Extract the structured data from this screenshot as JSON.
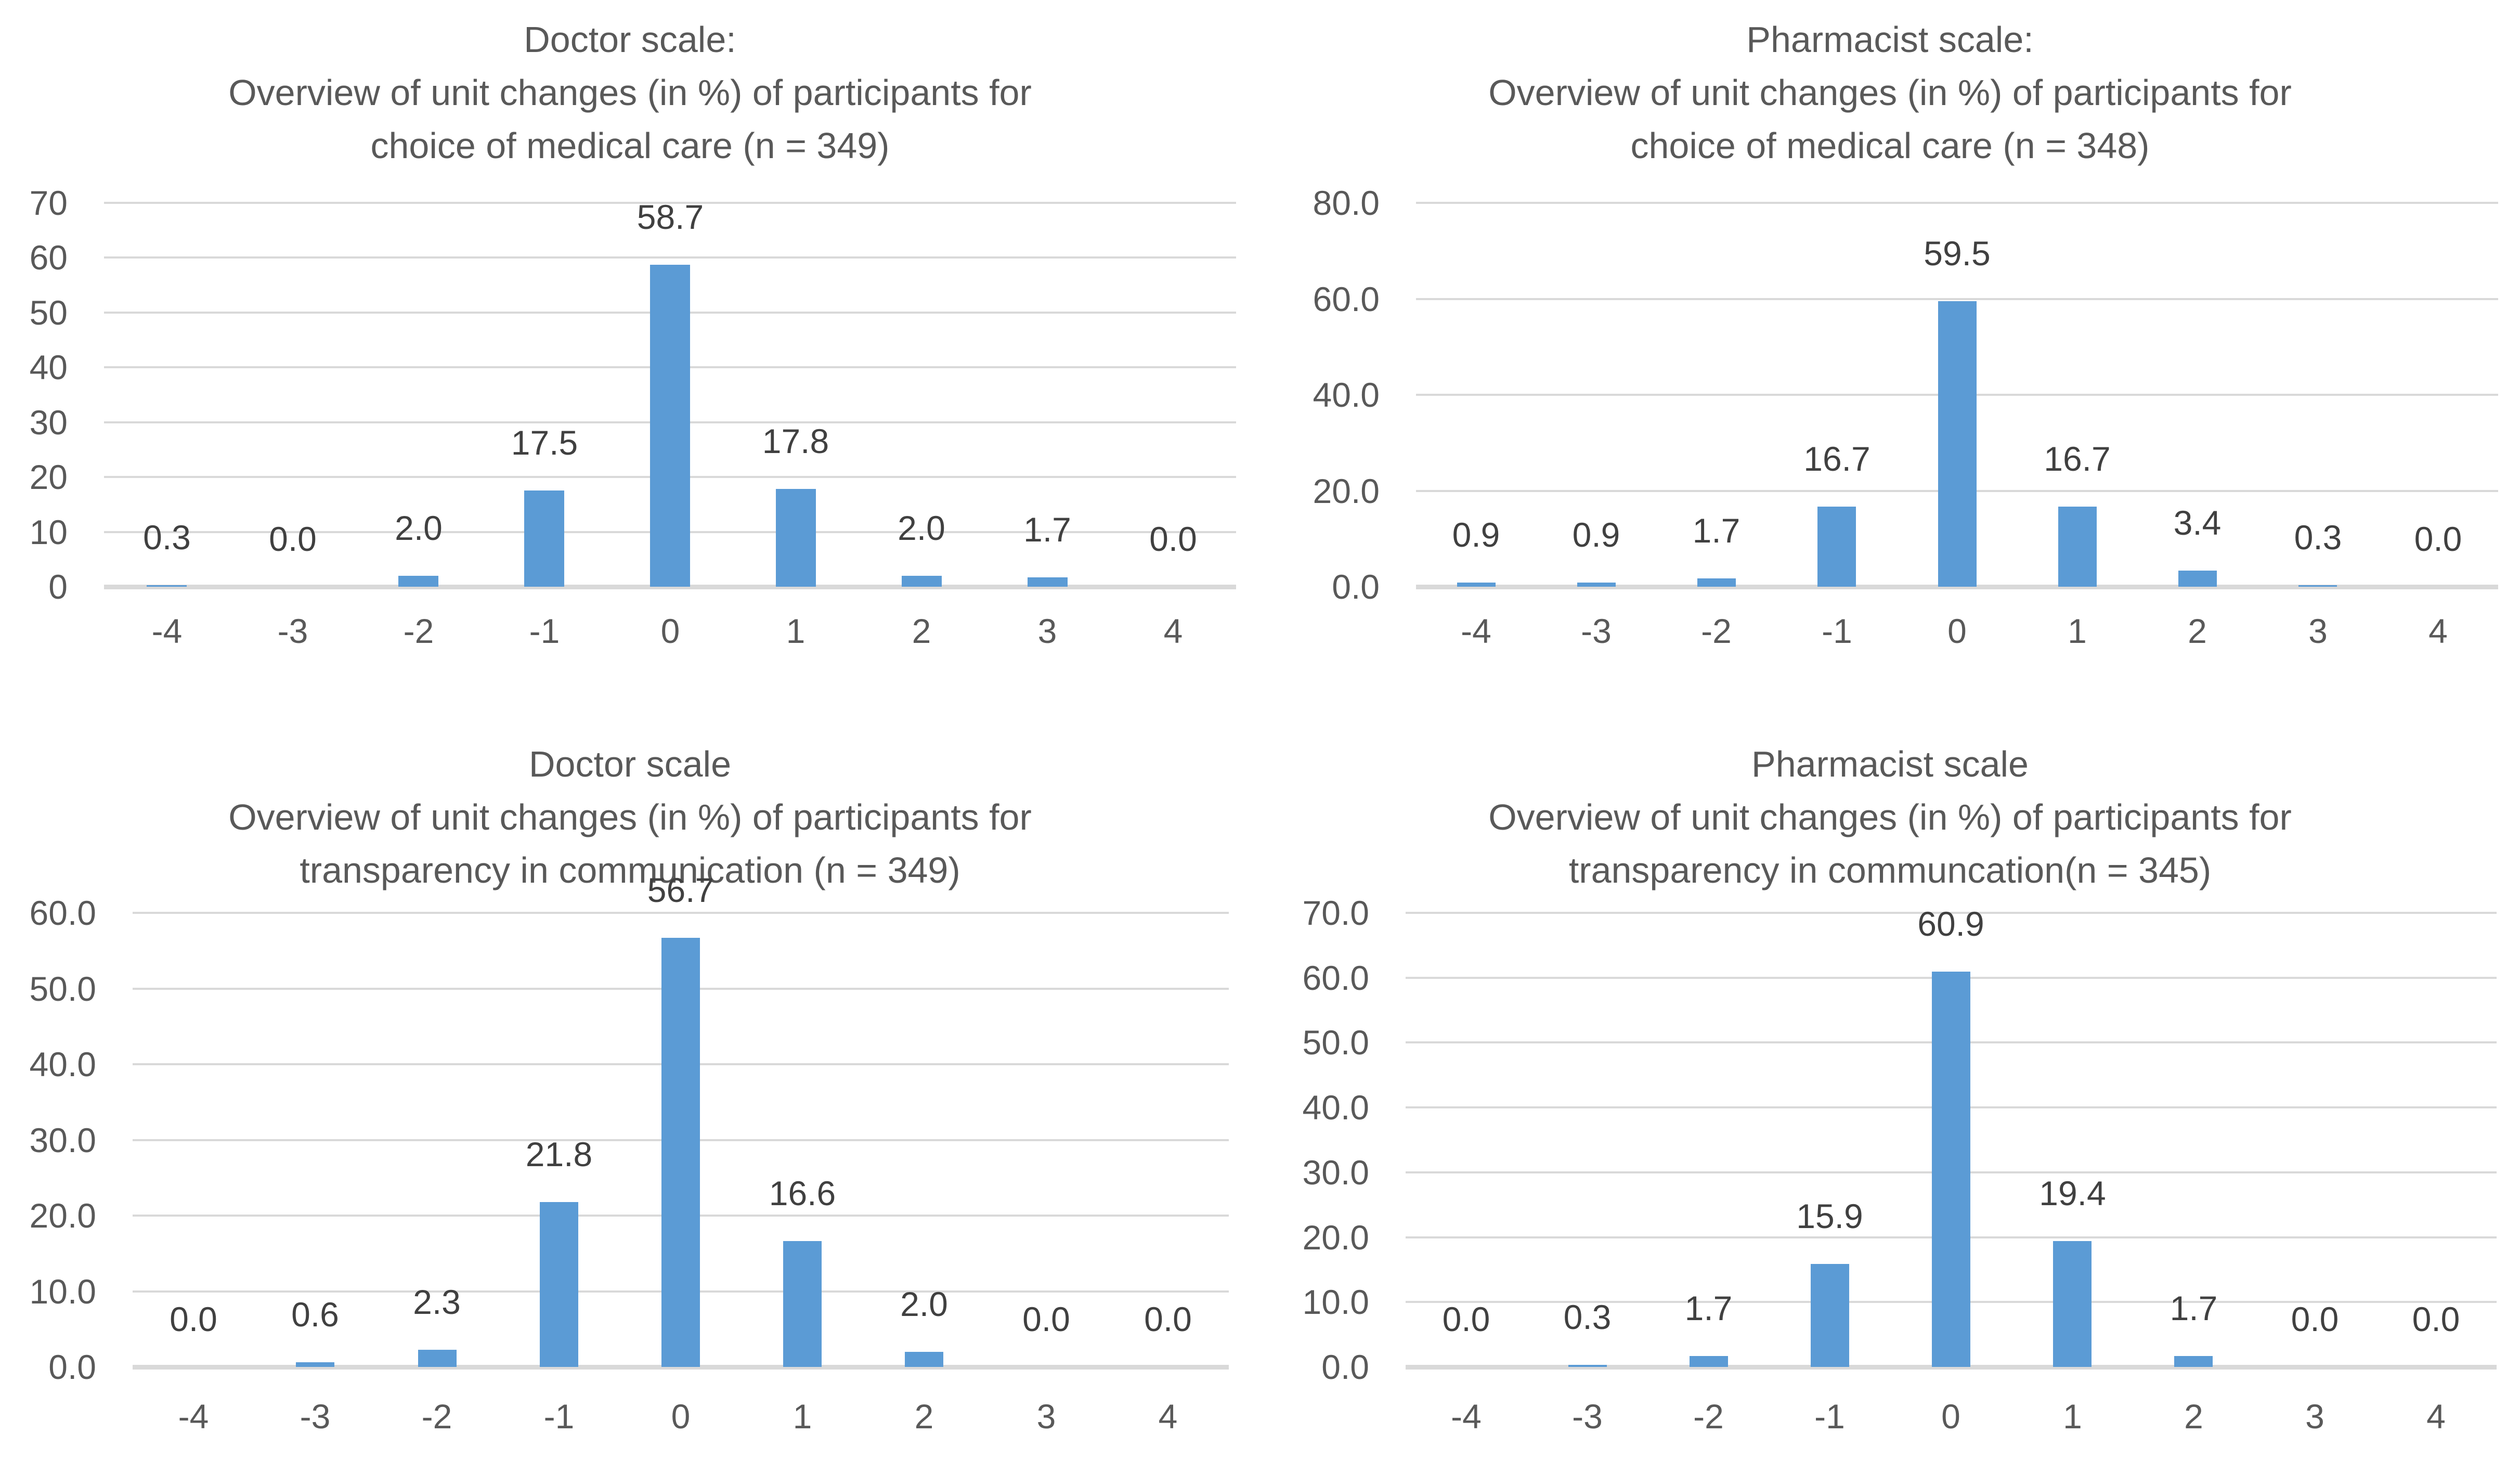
{
  "figure_title": "Overview of unit changes (in %) of participants — 2x2 bar chart panel",
  "colors": {
    "bar": "#5B9BD5",
    "gridline": "#D9D9D9",
    "axis_line": "#D9D9D9",
    "title_text": "#595959",
    "tick_text": "#595959",
    "data_label_text": "#404040",
    "background": "#FFFFFF"
  },
  "chart_data": [
    {
      "type": "bar",
      "title_lines": [
        "Doctor scale:",
        "Overview of unit changes (in %) of participants for",
        "choice of medical care (n = 349)"
      ],
      "categories": [
        "-4",
        "-3",
        "-2",
        "-1",
        "0",
        "1",
        "2",
        "3",
        "4"
      ],
      "values": [
        0.3,
        0.0,
        2.0,
        17.5,
        58.7,
        17.8,
        2.0,
        1.7,
        0.0
      ],
      "data_labels": [
        "0.3",
        "0.0",
        "2.0",
        "17.5",
        "58.7",
        "17.8",
        "2.0",
        "1.7",
        "0.0"
      ],
      "y_ticks": [
        "70",
        "60",
        "50",
        "40",
        "30",
        "20",
        "10",
        "0"
      ],
      "ylim": [
        0,
        70
      ],
      "grid": true,
      "legend": "none",
      "xlabel": "",
      "ylabel": ""
    },
    {
      "type": "bar",
      "title_lines": [
        "Pharmacist scale:",
        "Overview of unit changes (in %) of participants for",
        "choice of medical care (n = 348)"
      ],
      "categories": [
        "-4",
        "-3",
        "-2",
        "-1",
        "0",
        "1",
        "2",
        "3",
        "4"
      ],
      "values": [
        0.9,
        0.9,
        1.7,
        16.7,
        59.5,
        16.7,
        3.4,
        0.3,
        0.0
      ],
      "data_labels": [
        "0.9",
        "0.9",
        "1.7",
        "16.7",
        "59.5",
        "16.7",
        "3.4",
        "0.3",
        "0.0"
      ],
      "y_ticks": [
        "80.0",
        "60.0",
        "40.0",
        "20.0",
        "0.0"
      ],
      "ylim": [
        0,
        80
      ],
      "grid": true,
      "legend": "none",
      "xlabel": "",
      "ylabel": ""
    },
    {
      "type": "bar",
      "title_lines": [
        "Doctor scale",
        "Overview of unit changes (in %) of participants for",
        "transparency in communication (n = 349)"
      ],
      "categories": [
        "-4",
        "-3",
        "-2",
        "-1",
        "0",
        "1",
        "2",
        "3",
        "4"
      ],
      "values": [
        0.0,
        0.6,
        2.3,
        21.8,
        56.7,
        16.6,
        2.0,
        0.0,
        0.0
      ],
      "data_labels": [
        "0.0",
        "0.6",
        "2.3",
        "21.8",
        "56.7",
        "16.6",
        "2.0",
        "0.0",
        "0.0"
      ],
      "y_ticks": [
        "60.0",
        "50.0",
        "40.0",
        "30.0",
        "20.0",
        "10.0",
        "0.0"
      ],
      "ylim": [
        0,
        60
      ],
      "grid": true,
      "legend": "none",
      "xlabel": "",
      "ylabel": ""
    },
    {
      "type": "bar",
      "title_lines": [
        "Pharmacist scale",
        "Overview of unit changes (in %) of participants for",
        "transparency in communcation(n = 345)"
      ],
      "categories": [
        "-4",
        "-3",
        "-2",
        "-1",
        "0",
        "1",
        "2",
        "3",
        "4"
      ],
      "values": [
        0.0,
        0.3,
        1.7,
        15.9,
        60.9,
        19.4,
        1.7,
        0.0,
        0.0
      ],
      "data_labels": [
        "0.0",
        "0.3",
        "1.7",
        "15.9",
        "60.9",
        "19.4",
        "1.7",
        "0.0",
        "0.0"
      ],
      "y_ticks": [
        "70.0",
        "60.0",
        "50.0",
        "40.0",
        "30.0",
        "20.0",
        "10.0",
        "0.0"
      ],
      "ylim": [
        0,
        70
      ],
      "grid": true,
      "legend": "none",
      "xlabel": "",
      "ylabel": ""
    }
  ]
}
